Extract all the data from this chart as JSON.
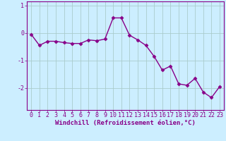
{
  "x": [
    0,
    1,
    2,
    3,
    4,
    5,
    6,
    7,
    8,
    9,
    10,
    11,
    12,
    13,
    14,
    15,
    16,
    17,
    18,
    19,
    20,
    21,
    22,
    23
  ],
  "y": [
    -0.05,
    -0.45,
    -0.3,
    -0.3,
    -0.35,
    -0.38,
    -0.38,
    -0.25,
    -0.28,
    -0.22,
    0.55,
    0.55,
    -0.08,
    -0.25,
    -0.45,
    -0.85,
    -1.35,
    -1.2,
    -1.85,
    -1.9,
    -1.65,
    -2.15,
    -2.35,
    -1.95
  ],
  "line_color": "#880088",
  "marker": "D",
  "marker_size": 2.5,
  "line_width": 1.0,
  "background_color": "#cceeff",
  "grid_color": "#aacccc",
  "xlabel": "Windchill (Refroidissement éolien,°C)",
  "xlabel_fontsize": 6.5,
  "tick_fontsize": 6,
  "xlim": [
    -0.5,
    23.5
  ],
  "ylim": [
    -2.8,
    1.15
  ],
  "yticks": [
    -2,
    -1,
    0,
    1
  ],
  "xticks": [
    0,
    1,
    2,
    3,
    4,
    5,
    6,
    7,
    8,
    9,
    10,
    11,
    12,
    13,
    14,
    15,
    16,
    17,
    18,
    19,
    20,
    21,
    22,
    23
  ]
}
